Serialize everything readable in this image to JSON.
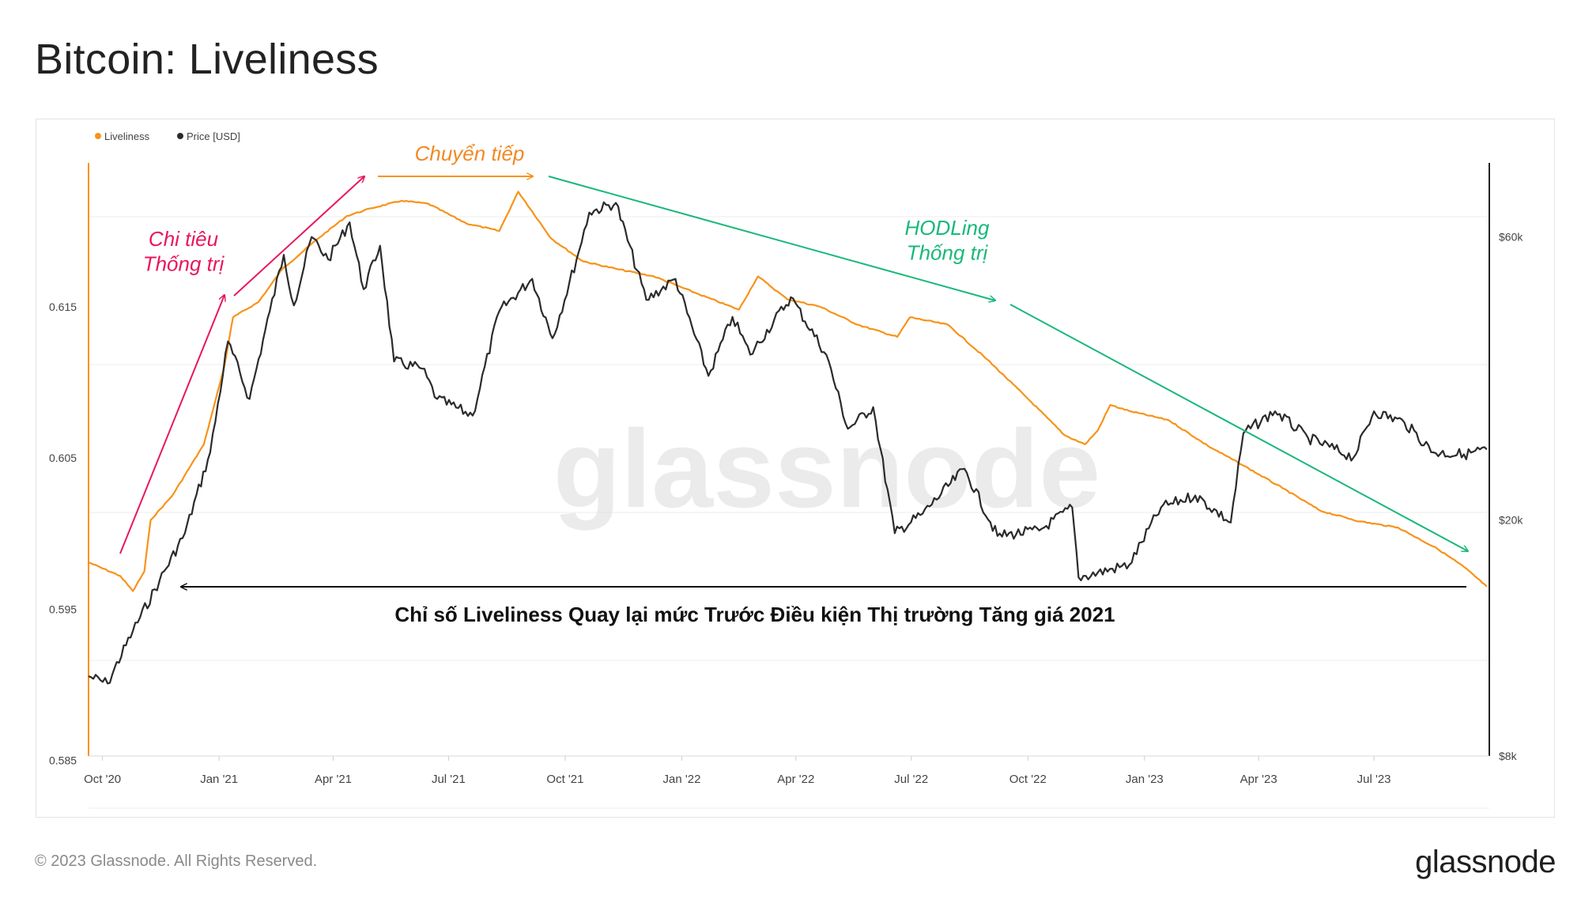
{
  "header": {
    "title": "Bitcoin: Liveliness"
  },
  "footer": {
    "copyright": "© 2023 Glassnode. All Rights Reserved.",
    "logo": "glassnode"
  },
  "watermark": "glassnode",
  "colors": {
    "liveliness": "#f7931a",
    "price": "#2b2b2b",
    "pink": "#e8175d",
    "green": "#19b87a",
    "arrow_black": "#111111"
  },
  "chart_data": {
    "type": "line",
    "legend": {
      "position": "top-left",
      "items": [
        "Liveliness",
        "Price [USD]"
      ]
    },
    "x_ticks": [
      "Oct '20",
      "Jan '21",
      "Apr '21",
      "Jul '21",
      "Oct '21",
      "Jan '22",
      "Apr '22",
      "Jul '22",
      "Oct '22",
      "Jan '23",
      "Apr '23",
      "Jul '23"
    ],
    "x_range": [
      "2020-09-20",
      "2023-09-30"
    ],
    "y_left": {
      "ticks": [
        "0.585",
        "0.595",
        "0.605",
        "0.615"
      ],
      "range": [
        0.5853,
        0.6245
      ]
    },
    "y_right": {
      "scale": "log",
      "ticks": [
        "$8k",
        "$20k",
        "$60k"
      ],
      "range": [
        8000,
        80000
      ]
    },
    "grid": true,
    "series": [
      {
        "name": "Liveliness",
        "axis": "left",
        "points": [
          [
            "2020-09-20",
            0.5981
          ],
          [
            "2020-10-15",
            0.5972
          ],
          [
            "2020-10-25",
            0.5962
          ],
          [
            "2020-11-03",
            0.5975
          ],
          [
            "2020-11-08",
            0.6009
          ],
          [
            "2020-11-25",
            0.6025
          ],
          [
            "2020-12-20",
            0.6059
          ],
          [
            "2021-01-05",
            0.611
          ],
          [
            "2021-01-12",
            0.6143
          ],
          [
            "2021-02-01",
            0.6153
          ],
          [
            "2021-02-20",
            0.6175
          ],
          [
            "2021-03-20",
            0.6195
          ],
          [
            "2021-04-12",
            0.621
          ],
          [
            "2021-05-01",
            0.6215
          ],
          [
            "2021-05-25",
            0.622
          ],
          [
            "2021-06-15",
            0.6218
          ],
          [
            "2021-07-15",
            0.6205
          ],
          [
            "2021-08-10",
            0.62
          ],
          [
            "2021-08-25",
            0.6226
          ],
          [
            "2021-09-20",
            0.6195
          ],
          [
            "2021-10-15",
            0.618
          ],
          [
            "2021-11-10",
            0.6175
          ],
          [
            "2021-12-10",
            0.617
          ],
          [
            "2022-01-15",
            0.6158
          ],
          [
            "2022-02-15",
            0.6148
          ],
          [
            "2022-03-02",
            0.617
          ],
          [
            "2022-03-25",
            0.6155
          ],
          [
            "2022-04-20",
            0.615
          ],
          [
            "2022-05-20",
            0.6138
          ],
          [
            "2022-06-20",
            0.613
          ],
          [
            "2022-06-30",
            0.6143
          ],
          [
            "2022-07-30",
            0.6138
          ],
          [
            "2022-08-30",
            0.6115
          ],
          [
            "2022-09-30",
            0.609
          ],
          [
            "2022-10-30",
            0.6065
          ],
          [
            "2022-11-15",
            0.6059
          ],
          [
            "2022-11-25",
            0.6068
          ],
          [
            "2022-12-05",
            0.6085
          ],
          [
            "2022-12-20",
            0.6081
          ],
          [
            "2023-01-20",
            0.6075
          ],
          [
            "2023-02-20",
            0.6058
          ],
          [
            "2023-03-20",
            0.6045
          ],
          [
            "2023-04-20",
            0.603
          ],
          [
            "2023-05-20",
            0.6015
          ],
          [
            "2023-06-20",
            0.6008
          ],
          [
            "2023-07-20",
            0.6004
          ],
          [
            "2023-08-20",
            0.599
          ],
          [
            "2023-09-10",
            0.5978
          ],
          [
            "2023-09-28",
            0.5965
          ]
        ]
      },
      {
        "name": "Price [USD]",
        "axis": "right",
        "points": [
          [
            "2020-09-20",
            10900
          ],
          [
            "2020-10-05",
            10600
          ],
          [
            "2020-10-25",
            13000
          ],
          [
            "2020-11-15",
            15800
          ],
          [
            "2020-12-05",
            19000
          ],
          [
            "2020-12-25",
            26000
          ],
          [
            "2021-01-08",
            40000
          ],
          [
            "2021-01-25",
            32000
          ],
          [
            "2021-02-10",
            45000
          ],
          [
            "2021-02-21",
            56000
          ],
          [
            "2021-03-01",
            46000
          ],
          [
            "2021-03-15",
            60000
          ],
          [
            "2021-03-28",
            55000
          ],
          [
            "2021-04-14",
            63500
          ],
          [
            "2021-04-25",
            49000
          ],
          [
            "2021-05-08",
            58000
          ],
          [
            "2021-05-19",
            37000
          ],
          [
            "2021-06-10",
            36000
          ],
          [
            "2021-06-22",
            32000
          ],
          [
            "2021-07-20",
            30000
          ],
          [
            "2021-08-10",
            45000
          ],
          [
            "2021-09-05",
            51000
          ],
          [
            "2021-09-21",
            40500
          ],
          [
            "2021-10-10",
            55000
          ],
          [
            "2021-10-20",
            66000
          ],
          [
            "2021-11-10",
            68500
          ],
          [
            "2021-12-04",
            47000
          ],
          [
            "2021-12-27",
            51000
          ],
          [
            "2022-01-22",
            35000
          ],
          [
            "2022-02-10",
            44000
          ],
          [
            "2022-02-24",
            38000
          ],
          [
            "2022-03-28",
            47500
          ],
          [
            "2022-04-25",
            38000
          ],
          [
            "2022-05-12",
            28500
          ],
          [
            "2022-06-01",
            31000
          ],
          [
            "2022-06-18",
            19000
          ],
          [
            "2022-07-10",
            20500
          ],
          [
            "2022-08-12",
            24400
          ],
          [
            "2022-09-07",
            18800
          ],
          [
            "2022-10-10",
            19200
          ],
          [
            "2022-11-05",
            21000
          ],
          [
            "2022-11-10",
            16000
          ],
          [
            "2022-12-20",
            16800
          ],
          [
            "2023-01-14",
            21000
          ],
          [
            "2023-02-10",
            22000
          ],
          [
            "2023-03-10",
            19800
          ],
          [
            "2023-03-20",
            28000
          ],
          [
            "2023-04-14",
            30500
          ],
          [
            "2023-05-10",
            27500
          ],
          [
            "2023-06-15",
            25500
          ],
          [
            "2023-07-01",
            30500
          ],
          [
            "2023-07-25",
            29200
          ],
          [
            "2023-08-17",
            26000
          ],
          [
            "2023-09-10",
            25800
          ],
          [
            "2023-09-28",
            26300
          ]
        ]
      }
    ],
    "annotations": [
      {
        "id": "spend",
        "lines": [
          "Chi tiêu",
          "Thống trị"
        ],
        "color": "#e8175d"
      },
      {
        "id": "transition",
        "lines": [
          "Chuyển tiếp"
        ],
        "color": "#f08a24"
      },
      {
        "id": "hodl",
        "lines": [
          "HODLing",
          "Thống trị"
        ],
        "color": "#19b87a"
      },
      {
        "id": "bottom",
        "lines": [
          "Chỉ số Liveliness Quay lại mức Trước Điều kiện Thị trường Tăng giá 2021"
        ],
        "color": "#111111"
      }
    ]
  }
}
